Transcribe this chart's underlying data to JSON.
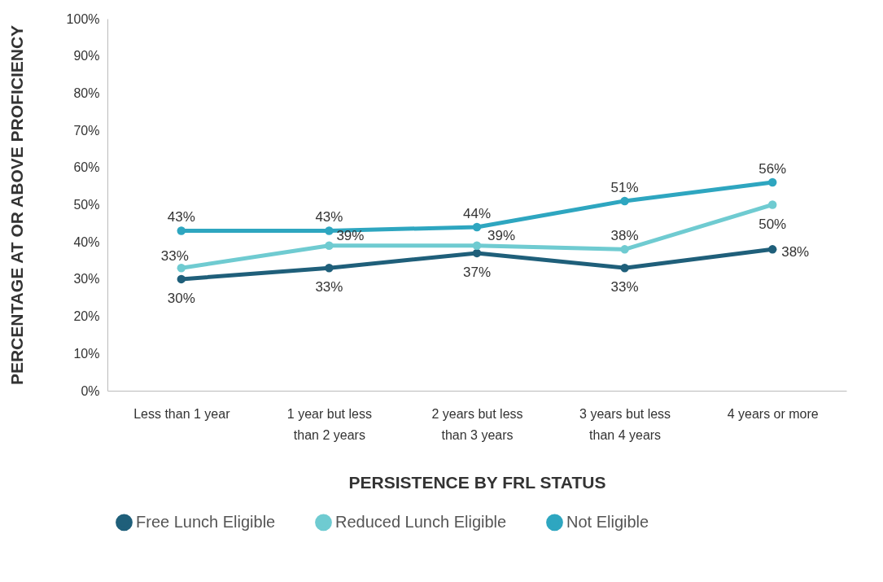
{
  "chart_data": {
    "type": "line",
    "xlabel": "PERSISTENCE BY FRL STATUS",
    "ylabel": "PERCENTAGE AT OR ABOVE PROFICIENCY",
    "categories": [
      "Less than 1 year",
      "1 year but less than 2 years",
      "2 years but less than 3 years",
      "3 years but less than 4 years",
      "4 years or more"
    ],
    "series": [
      {
        "name": "Free Lunch Eligible",
        "color": "#1f5f7a",
        "values": [
          30,
          33,
          37,
          33,
          38
        ],
        "value_labels": [
          "30%",
          "33%",
          "37%",
          "33%",
          "38%"
        ]
      },
      {
        "name": "Reduced Lunch Eligible",
        "color": "#6fcbd1",
        "values": [
          33,
          39,
          39,
          38,
          50
        ],
        "value_labels": [
          "33%",
          "39%",
          "39%",
          "38%",
          "50%"
        ]
      },
      {
        "name": "Not Eligible",
        "color": "#2ea6c0",
        "values": [
          43,
          43,
          44,
          51,
          56
        ],
        "value_labels": [
          "43%",
          "43%",
          "44%",
          "51%",
          "56%"
        ]
      }
    ],
    "ylim": [
      0,
      100
    ],
    "yticks": [
      {
        "value": 0,
        "label": "0%"
      },
      {
        "value": 10,
        "label": "10%"
      },
      {
        "value": 20,
        "label": "20%"
      },
      {
        "value": 30,
        "label": "30%"
      },
      {
        "value": 40,
        "label": "40%"
      },
      {
        "value": 50,
        "label": "50%"
      },
      {
        "value": 60,
        "label": "60%"
      },
      {
        "value": 70,
        "label": "70%"
      },
      {
        "value": 80,
        "label": "80%"
      },
      {
        "value": 90,
        "label": "90%"
      },
      {
        "value": 100,
        "label": "100%"
      }
    ],
    "grid": false,
    "legend": "bottom",
    "marker": "circle",
    "line_style": "solid"
  }
}
